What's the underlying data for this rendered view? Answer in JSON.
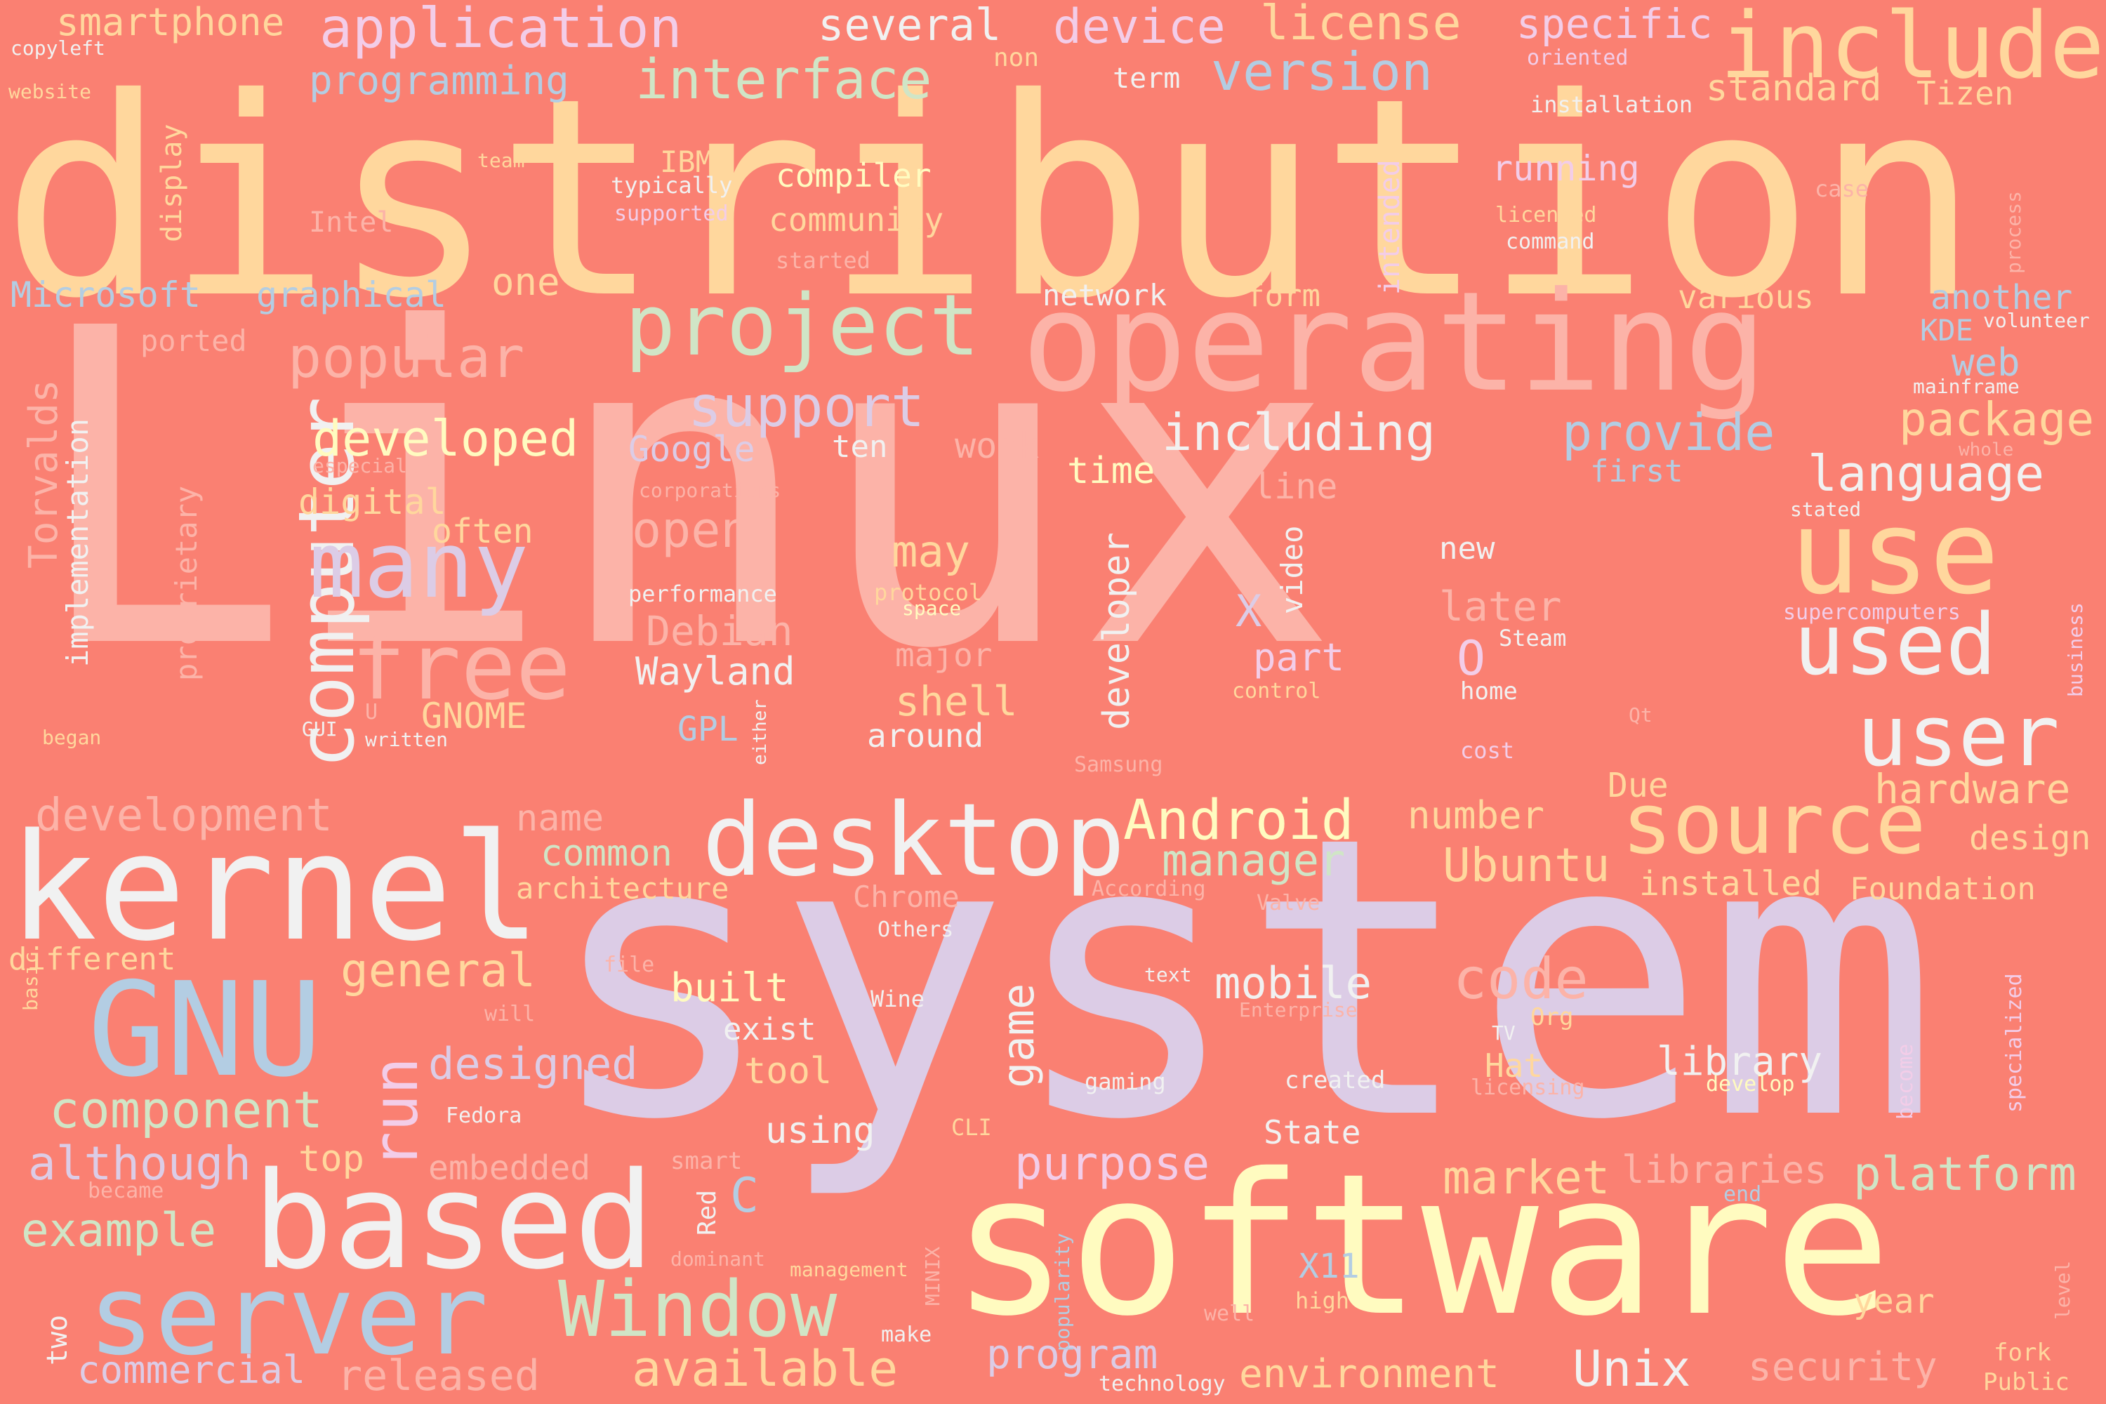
{
  "cloud": {
    "background": "#FA8072",
    "words": [
      {
        "text": "Linux",
        "color": "#FCB3A8"
      },
      {
        "text": "system",
        "color": "#DCCCE6"
      },
      {
        "text": "distribution",
        "color": "#FFD79D"
      },
      {
        "text": "operating",
        "color": "#FCB3A8"
      },
      {
        "text": "software",
        "color": "#FFFBC0"
      },
      {
        "text": "kernel",
        "color": "#F1F1F1"
      },
      {
        "text": "GNU",
        "color": "#B3CDE3"
      },
      {
        "text": "based",
        "color": "#F1F1F1"
      },
      {
        "text": "server",
        "color": "#B3CDE3"
      },
      {
        "text": "desktop",
        "color": "#F1F1F1"
      },
      {
        "text": "use",
        "color": "#FFD79D"
      },
      {
        "text": "include",
        "color": "#FFD79D"
      },
      {
        "text": "project",
        "color": "#D0E5C6"
      },
      {
        "text": "computer",
        "color": "#F1F1F1"
      },
      {
        "text": "many",
        "color": "#DCCCE6"
      },
      {
        "text": "free",
        "color": "#FCB3A8"
      },
      {
        "text": "source",
        "color": "#FFD79D"
      },
      {
        "text": "used",
        "color": "#F1F1F1"
      },
      {
        "text": "user",
        "color": "#F1F1F1"
      },
      {
        "text": "Window",
        "color": "#D0E5C6"
      },
      {
        "text": "application",
        "color": "#F3CDE8"
      },
      {
        "text": "interface",
        "color": "#D0E5C6"
      },
      {
        "text": "version",
        "color": "#B3CDE3"
      },
      {
        "text": "license",
        "color": "#FFD79D"
      },
      {
        "text": "device",
        "color": "#F3CDE8"
      },
      {
        "text": "several",
        "color": "#F1F1F1"
      },
      {
        "text": "smartphone",
        "color": "#FFD79D"
      },
      {
        "text": "specific",
        "color": "#F3CDE8"
      },
      {
        "text": "programming",
        "color": "#B3CDE3"
      },
      {
        "text": "standard",
        "color": "#FFD79D"
      },
      {
        "text": "Tizen",
        "color": "#FFD79D"
      },
      {
        "text": "popular",
        "color": "#FCB3A8"
      },
      {
        "text": "support",
        "color": "#DCCCE6"
      },
      {
        "text": "including",
        "color": "#F1F1F1"
      },
      {
        "text": "provide",
        "color": "#B3CDE3"
      },
      {
        "text": "package",
        "color": "#FFD79D"
      },
      {
        "text": "language",
        "color": "#F1F1F1"
      },
      {
        "text": "developed",
        "color": "#FFFBC0"
      },
      {
        "text": "Android",
        "color": "#FFFBC0"
      },
      {
        "text": "manager",
        "color": "#D0E5C6"
      },
      {
        "text": "Ubuntu",
        "color": "#FFD79D"
      },
      {
        "text": "hardware",
        "color": "#FFD79D"
      },
      {
        "text": "development",
        "color": "#FCB3A8"
      },
      {
        "text": "component",
        "color": "#D0E5C6"
      },
      {
        "text": "although",
        "color": "#DCCCE6"
      },
      {
        "text": "example",
        "color": "#D0E5C6"
      },
      {
        "text": "commercial",
        "color": "#DCCCE6"
      },
      {
        "text": "released",
        "color": "#FCB3A8"
      },
      {
        "text": "available",
        "color": "#FFD79D"
      },
      {
        "text": "program",
        "color": "#DCCCE6"
      },
      {
        "text": "environment",
        "color": "#FFD79D"
      },
      {
        "text": "Unix",
        "color": "#F1F1F1"
      },
      {
        "text": "security",
        "color": "#FCB3A8"
      },
      {
        "text": "platform",
        "color": "#D0E5C6"
      },
      {
        "text": "market",
        "color": "#FFD79D"
      },
      {
        "text": "libraries",
        "color": "#FCB3A8"
      },
      {
        "text": "purpose",
        "color": "#F3CDE8"
      },
      {
        "text": "code",
        "color": "#FCB3A8"
      },
      {
        "text": "mobile",
        "color": "#F1F1F1"
      },
      {
        "text": "general",
        "color": "#FFD79D"
      },
      {
        "text": "designed",
        "color": "#DCCCE6"
      },
      {
        "text": "run",
        "color": "#F3CDE8"
      },
      {
        "text": "game",
        "color": "#F1F1F1"
      },
      {
        "text": "open",
        "color": "#FCB3A8"
      },
      {
        "text": "Debian",
        "color": "#FCB3A8"
      },
      {
        "text": "Wayland",
        "color": "#F1F1F1"
      },
      {
        "text": "shell",
        "color": "#FFD79D"
      },
      {
        "text": "may",
        "color": "#FFD79D"
      },
      {
        "text": "major",
        "color": "#FCB3A8"
      },
      {
        "text": "around",
        "color": "#F1F1F1"
      },
      {
        "text": "Google",
        "color": "#DCCCE6"
      },
      {
        "text": "developer",
        "color": "#F1F1F1"
      },
      {
        "text": "video",
        "color": "#F1F1F1"
      },
      {
        "text": "part",
        "color": "#F3CDE8"
      },
      {
        "text": "later",
        "color": "#FCB3A8"
      },
      {
        "text": "O",
        "color": "#F3CDE8"
      },
      {
        "text": "X",
        "color": "#DCCCE6"
      },
      {
        "text": "new",
        "color": "#F1F1F1"
      },
      {
        "text": "time",
        "color": "#FFFBC0"
      },
      {
        "text": "work",
        "color": "#FCB3A8"
      },
      {
        "text": "line",
        "color": "#FCB3A8"
      },
      {
        "text": "ten",
        "color": "#F1F1F1"
      },
      {
        "text": "first",
        "color": "#B3CDE3"
      },
      {
        "text": "one",
        "color": "#FFD79D"
      },
      {
        "text": "Microsoft",
        "color": "#B3CDE3"
      },
      {
        "text": "graphical",
        "color": "#B3CDE3"
      },
      {
        "text": "network",
        "color": "#F1F1F1"
      },
      {
        "text": "form",
        "color": "#FFD79D"
      },
      {
        "text": "various",
        "color": "#FFD79D"
      },
      {
        "text": "another",
        "color": "#B3CDE3"
      },
      {
        "text": "KDE",
        "color": "#B3CDE3"
      },
      {
        "text": "web",
        "color": "#B3CDE3"
      },
      {
        "text": "mainframe",
        "color": "#F1F1F1"
      },
      {
        "text": "whole",
        "color": "#FCB3A8"
      },
      {
        "text": "stated",
        "color": "#F1F1F1"
      },
      {
        "text": "volunteer",
        "color": "#F1F1F1"
      },
      {
        "text": "compiler",
        "color": "#FFFBC0"
      },
      {
        "text": "community",
        "color": "#FFD79D"
      },
      {
        "text": "IBM",
        "color": "#FFD79D"
      },
      {
        "text": "typically",
        "color": "#F1F1F1"
      },
      {
        "text": "supported",
        "color": "#F3CDE8"
      },
      {
        "text": "started",
        "color": "#FCB3A8"
      },
      {
        "text": "running",
        "color": "#F3CDE8"
      },
      {
        "text": "licensed",
        "color": "#FFD79D"
      },
      {
        "text": "command",
        "color": "#F1F1F1"
      },
      {
        "text": "installation",
        "color": "#F1F1F1"
      },
      {
        "text": "oriented",
        "color": "#F3CDE8"
      },
      {
        "text": "non",
        "color": "#FFD79D"
      },
      {
        "text": "term",
        "color": "#F1F1F1"
      },
      {
        "text": "case",
        "color": "#FCB3A8"
      },
      {
        "text": "process",
        "color": "#FCB3A8"
      },
      {
        "text": "intended",
        "color": "#F3CDE8"
      },
      {
        "text": "display",
        "color": "#FFD79D"
      },
      {
        "text": "copyleft",
        "color": "#F1F1F1"
      },
      {
        "text": "website",
        "color": "#FFD79D"
      },
      {
        "text": "team",
        "color": "#FFD79D"
      },
      {
        "text": "Intel",
        "color": "#FCB3A8"
      },
      {
        "text": "ported",
        "color": "#FCB3A8"
      },
      {
        "text": "Torvalds",
        "color": "#FCB3A8"
      },
      {
        "text": "implementation",
        "color": "#F1F1F1"
      },
      {
        "text": "proprietary",
        "color": "#FCB3A8"
      },
      {
        "text": "especially",
        "color": "#FCB3A8"
      },
      {
        "text": "digital",
        "color": "#FFD79D"
      },
      {
        "text": "often",
        "color": "#FFD79D"
      },
      {
        "text": "corporations",
        "color": "#FCB3A8"
      },
      {
        "text": "performance",
        "color": "#F1F1F1"
      },
      {
        "text": "protocol",
        "color": "#FFD79D"
      },
      {
        "text": "space",
        "color": "#FFFBC0"
      },
      {
        "text": "GNOME",
        "color": "#FFD79D"
      },
      {
        "text": "GPL",
        "color": "#B3CDE3"
      },
      {
        "text": "U",
        "color": "#FCB3A8"
      },
      {
        "text": "GUI",
        "color": "#F1F1F1"
      },
      {
        "text": "began",
        "color": "#FFD79D"
      },
      {
        "text": "written",
        "color": "#F1F1F1"
      },
      {
        "text": "either",
        "color": "#F1F1F1"
      },
      {
        "text": "Samsung",
        "color": "#FCB3A8"
      },
      {
        "text": "control",
        "color": "#FFD79D"
      },
      {
        "text": "home",
        "color": "#F1F1F1"
      },
      {
        "text": "Steam",
        "color": "#F1F1F1"
      },
      {
        "text": "cost",
        "color": "#F3CDE8"
      },
      {
        "text": "Qt",
        "color": "#FCB3A8"
      },
      {
        "text": "supercomputers",
        "color": "#F3CDE8"
      },
      {
        "text": "business",
        "color": "#F3CDE8"
      },
      {
        "text": "name",
        "color": "#FCB3A8"
      },
      {
        "text": "common",
        "color": "#D0E5C6"
      },
      {
        "text": "architecture",
        "color": "#FFD79D"
      },
      {
        "text": "number",
        "color": "#FFD79D"
      },
      {
        "text": "Due",
        "color": "#FFD79D"
      },
      {
        "text": "installed",
        "color": "#FFD79D"
      },
      {
        "text": "Foundation",
        "color": "#FFD79D"
      },
      {
        "text": "design",
        "color": "#FFD79D"
      },
      {
        "text": "According",
        "color": "#FCB3A8"
      },
      {
        "text": "Valve",
        "color": "#FCB3A8"
      },
      {
        "text": "Chrome",
        "color": "#FCB3A8"
      },
      {
        "text": "Others",
        "color": "#F1F1F1"
      },
      {
        "text": "different",
        "color": "#FFD79D"
      },
      {
        "text": "basic",
        "color": "#FFD79D"
      },
      {
        "text": "file",
        "color": "#FCB3A8"
      },
      {
        "text": "will",
        "color": "#FCB3A8"
      },
      {
        "text": "built",
        "color": "#FFFBC0"
      },
      {
        "text": "exist",
        "color": "#F1F1F1"
      },
      {
        "text": "tool",
        "color": "#FFD79D"
      },
      {
        "text": "Wine",
        "color": "#F1F1F1"
      },
      {
        "text": "text",
        "color": "#F1F1F1"
      },
      {
        "text": "Enterprise",
        "color": "#FCB3A8"
      },
      {
        "text": "Org",
        "color": "#FFD79D"
      },
      {
        "text": "TV",
        "color": "#F1F1F1"
      },
      {
        "text": "Hat",
        "color": "#FFD79D"
      },
      {
        "text": "licensing",
        "color": "#FCB3A8"
      },
      {
        "text": "library",
        "color": "#F1F1F1"
      },
      {
        "text": "develop",
        "color": "#FFFBC0"
      },
      {
        "text": "become",
        "color": "#F3CDE8"
      },
      {
        "text": "specialized",
        "color": "#F3CDE8"
      },
      {
        "text": "Fedora",
        "color": "#F1F1F1"
      },
      {
        "text": "gaming",
        "color": "#F1F1F1"
      },
      {
        "text": "created",
        "color": "#F1F1F1"
      },
      {
        "text": "State",
        "color": "#F1F1F1"
      },
      {
        "text": "using",
        "color": "#F1F1F1"
      },
      {
        "text": "CLI",
        "color": "#FFD79D"
      },
      {
        "text": "embedded",
        "color": "#FCB3A8"
      },
      {
        "text": "smart",
        "color": "#FCB3A8"
      },
      {
        "text": "top",
        "color": "#FFD79D"
      },
      {
        "text": "became",
        "color": "#FCB3A8"
      },
      {
        "text": "Red",
        "color": "#F1F1F1"
      },
      {
        "text": "C",
        "color": "#B3CDE3"
      },
      {
        "text": "dominant",
        "color": "#FCB3A8"
      },
      {
        "text": "management",
        "color": "#FFD79D"
      },
      {
        "text": "MINIX",
        "color": "#FCB3A8"
      },
      {
        "text": "popularity",
        "color": "#B3CDE3"
      },
      {
        "text": "X11",
        "color": "#B3CDE3"
      },
      {
        "text": "high",
        "color": "#FFD79D"
      },
      {
        "text": "well",
        "color": "#FCB3A8"
      },
      {
        "text": "make",
        "color": "#F1F1F1"
      },
      {
        "text": "technology",
        "color": "#F1F1F1"
      },
      {
        "text": "two",
        "color": "#F1F1F1"
      },
      {
        "text": "year",
        "color": "#FFD79D"
      },
      {
        "text": "end",
        "color": "#B3CDE3"
      },
      {
        "text": "fork",
        "color": "#FFD79D"
      },
      {
        "text": "Public",
        "color": "#FFD79D"
      },
      {
        "text": "level",
        "color": "#FCB3A8"
      }
    ]
  }
}
